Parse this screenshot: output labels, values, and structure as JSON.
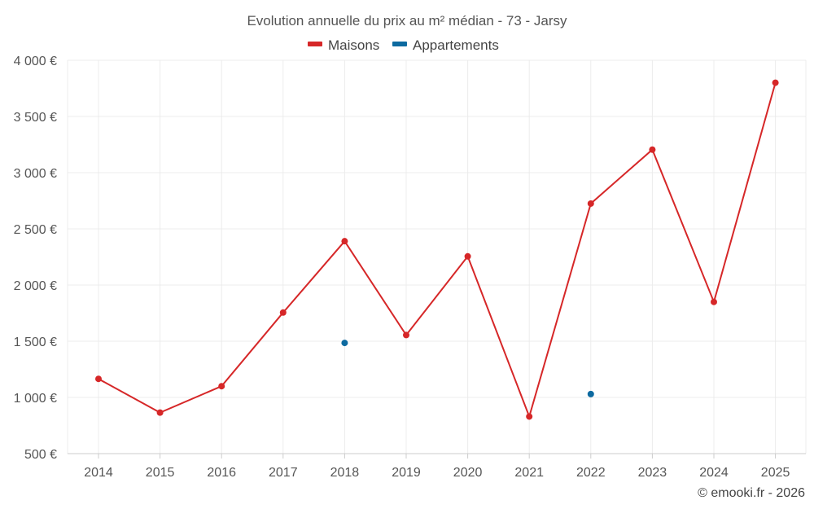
{
  "chart_data": {
    "type": "line",
    "title": "Evolution annuelle du prix au m² médian - 73 - Jarsy",
    "categories": [
      "2014",
      "2015",
      "2016",
      "2017",
      "2018",
      "2019",
      "2020",
      "2021",
      "2022",
      "2023",
      "2024",
      "2025"
    ],
    "series": [
      {
        "name": "Maisons",
        "color": "#d62728",
        "values": [
          1165,
          865,
          1100,
          1755,
          2390,
          1555,
          2255,
          830,
          2725,
          3205,
          1850,
          3800
        ]
      },
      {
        "name": "Appartements",
        "color": "#0d6aa0",
        "values": [
          null,
          null,
          null,
          null,
          1485,
          null,
          null,
          null,
          1030,
          null,
          null,
          null
        ]
      }
    ],
    "ylim": [
      500,
      4000
    ],
    "yticks": [
      500,
      1000,
      1500,
      2000,
      2500,
      3000,
      3500,
      4000
    ],
    "ytick_labels": [
      "500 €",
      "1 000 €",
      "1 500 €",
      "2 000 €",
      "2 500 €",
      "3 000 €",
      "3 500 €",
      "4 000 €"
    ],
    "xlabel": "",
    "ylabel": "",
    "grid": true,
    "legend_position": "top-center"
  },
  "credit": "© emooki.fr - 2026"
}
